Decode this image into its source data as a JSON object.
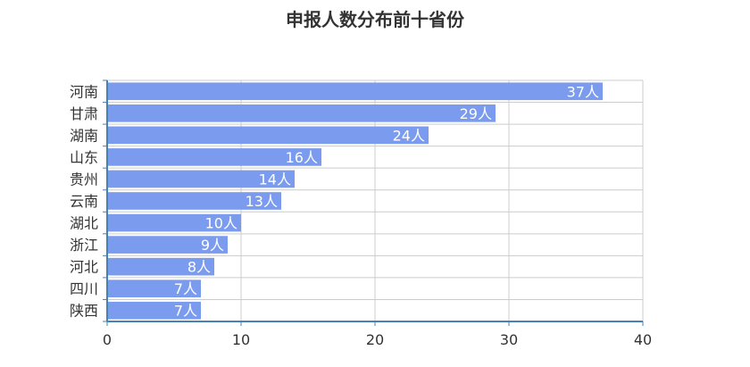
{
  "chart_data": {
    "type": "bar",
    "orientation": "horizontal",
    "title": "申报人数分布前十省份",
    "categories": [
      "河南",
      "甘肃",
      "湖南",
      "山东",
      "贵州",
      "云南",
      "湖北",
      "浙江",
      "河北",
      "四川",
      "陕西"
    ],
    "values": [
      37,
      29,
      24,
      16,
      14,
      13,
      10,
      9,
      8,
      7,
      7
    ],
    "data_labels": [
      "37人",
      "29人",
      "24人",
      "16人",
      "14人",
      "13人",
      "10人",
      "9人",
      "8人",
      "7人",
      "7人"
    ],
    "xlim": [
      0,
      40
    ],
    "x_ticks": [
      "0",
      "10",
      "20",
      "30",
      "40"
    ],
    "grid": true,
    "bar_color": "#7b9bee",
    "axis_color": "#4682b4"
  }
}
